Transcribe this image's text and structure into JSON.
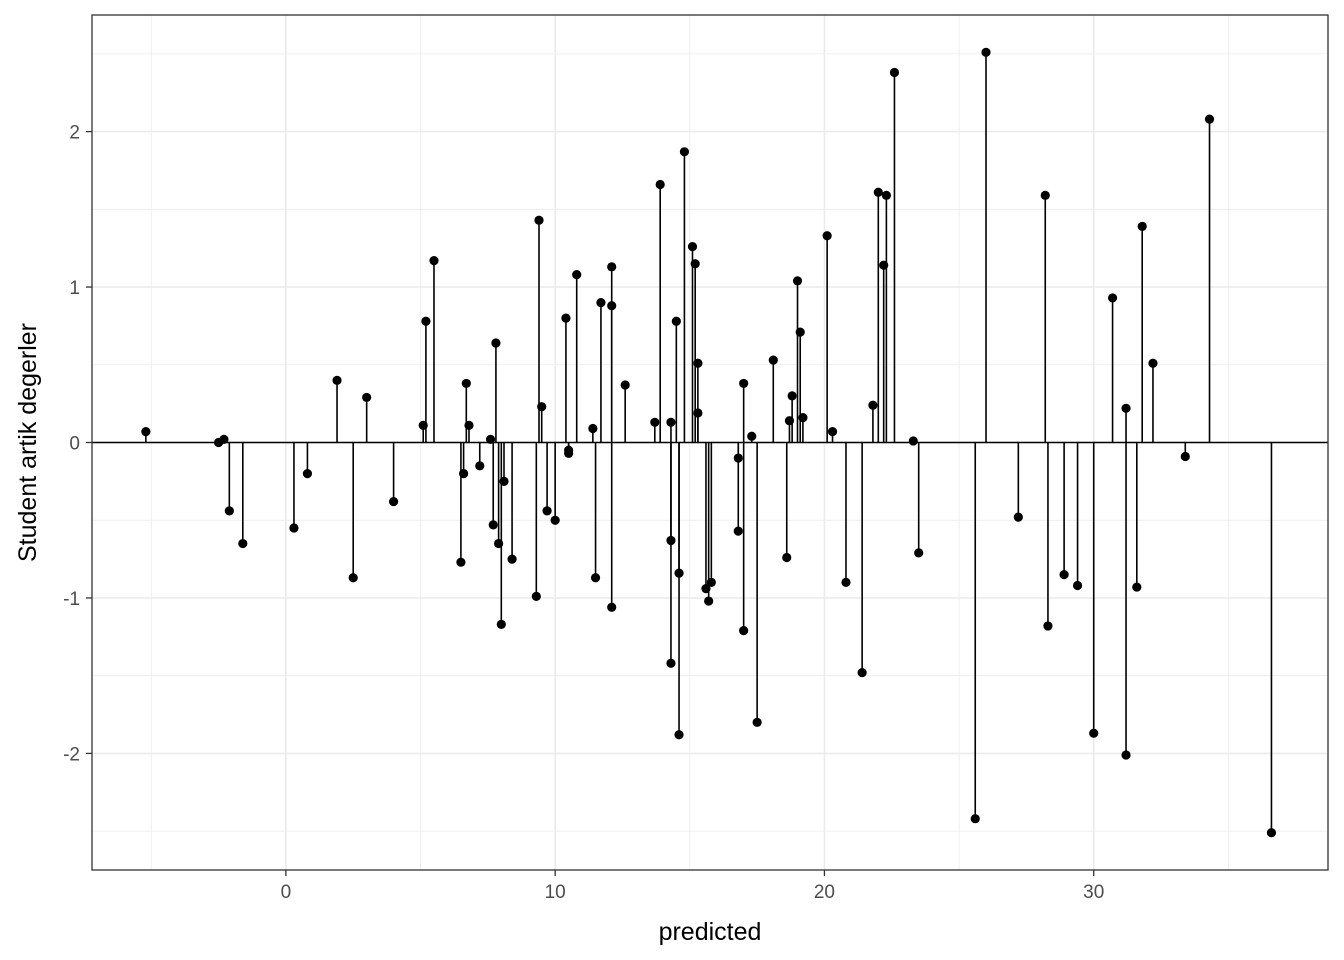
{
  "chart_data": {
    "type": "scatter",
    "subtype": "stem",
    "title": "",
    "xlabel": "predicted",
    "ylabel": "Student artik degerler",
    "xlim": [
      -7.2,
      38.7
    ],
    "ylim": [
      -2.75,
      2.75
    ],
    "x_ticks": [
      0,
      10,
      20,
      30
    ],
    "x_tick_labels": [
      "0",
      "10",
      "20",
      "30"
    ],
    "y_ticks": [
      -2,
      -1,
      0,
      1,
      2
    ],
    "y_tick_labels": [
      "-2",
      "-1",
      "0",
      "1",
      "2"
    ],
    "grid": true,
    "baseline": 0,
    "colors": {
      "points": "#000000",
      "stems": "#000000",
      "grid": "#ebebeb",
      "panel_border": "#333333"
    },
    "points": [
      {
        "x": -5.2,
        "y": 0.07
      },
      {
        "x": -2.5,
        "y": 0.0
      },
      {
        "x": -2.3,
        "y": 0.02
      },
      {
        "x": -2.1,
        "y": -0.44
      },
      {
        "x": -1.6,
        "y": -0.65
      },
      {
        "x": 0.3,
        "y": -0.55
      },
      {
        "x": 0.8,
        "y": -0.2
      },
      {
        "x": 1.9,
        "y": 0.4
      },
      {
        "x": 2.5,
        "y": -0.87
      },
      {
        "x": 3.0,
        "y": 0.29
      },
      {
        "x": 4.0,
        "y": -0.38
      },
      {
        "x": 5.1,
        "y": 0.11
      },
      {
        "x": 5.2,
        "y": 0.78
      },
      {
        "x": 5.5,
        "y": 1.17
      },
      {
        "x": 6.5,
        "y": -0.77
      },
      {
        "x": 6.6,
        "y": -0.2
      },
      {
        "x": 6.7,
        "y": 0.38
      },
      {
        "x": 6.8,
        "y": 0.11
      },
      {
        "x": 7.2,
        "y": -0.15
      },
      {
        "x": 7.6,
        "y": 0.02
      },
      {
        "x": 7.7,
        "y": -0.53
      },
      {
        "x": 7.8,
        "y": 0.64
      },
      {
        "x": 7.9,
        "y": -0.65
      },
      {
        "x": 8.0,
        "y": -1.17
      },
      {
        "x": 8.1,
        "y": -0.25
      },
      {
        "x": 8.4,
        "y": -0.75
      },
      {
        "x": 9.3,
        "y": -0.99
      },
      {
        "x": 9.4,
        "y": 1.43
      },
      {
        "x": 9.5,
        "y": 0.23
      },
      {
        "x": 9.7,
        "y": -0.44
      },
      {
        "x": 10.0,
        "y": -0.5
      },
      {
        "x": 10.4,
        "y": 0.8
      },
      {
        "x": 10.5,
        "y": -0.05
      },
      {
        "x": 10.5,
        "y": -0.07
      },
      {
        "x": 10.8,
        "y": 1.08
      },
      {
        "x": 11.4,
        "y": 0.09
      },
      {
        "x": 11.5,
        "y": -0.87
      },
      {
        "x": 11.7,
        "y": 0.9
      },
      {
        "x": 12.1,
        "y": 1.13
      },
      {
        "x": 12.1,
        "y": 0.88
      },
      {
        "x": 12.1,
        "y": -1.06
      },
      {
        "x": 12.6,
        "y": 0.37
      },
      {
        "x": 13.7,
        "y": 0.13
      },
      {
        "x": 13.9,
        "y": 1.66
      },
      {
        "x": 14.3,
        "y": 0.13
      },
      {
        "x": 14.3,
        "y": -0.63
      },
      {
        "x": 14.3,
        "y": -1.42
      },
      {
        "x": 14.5,
        "y": 0.78
      },
      {
        "x": 14.6,
        "y": -0.84
      },
      {
        "x": 14.6,
        "y": -1.88
      },
      {
        "x": 14.8,
        "y": 1.87
      },
      {
        "x": 15.1,
        "y": 1.26
      },
      {
        "x": 15.2,
        "y": 1.15
      },
      {
        "x": 15.3,
        "y": 0.51
      },
      {
        "x": 15.3,
        "y": 0.19
      },
      {
        "x": 15.6,
        "y": -0.94
      },
      {
        "x": 15.7,
        "y": -1.02
      },
      {
        "x": 15.8,
        "y": -0.9
      },
      {
        "x": 16.8,
        "y": -0.1
      },
      {
        "x": 16.8,
        "y": -0.57
      },
      {
        "x": 17.0,
        "y": 0.38
      },
      {
        "x": 17.0,
        "y": -1.21
      },
      {
        "x": 17.3,
        "y": 0.04
      },
      {
        "x": 17.5,
        "y": -1.8
      },
      {
        "x": 18.1,
        "y": 0.53
      },
      {
        "x": 18.6,
        "y": -0.74
      },
      {
        "x": 18.7,
        "y": 0.14
      },
      {
        "x": 18.8,
        "y": 0.3
      },
      {
        "x": 19.0,
        "y": 1.04
      },
      {
        "x": 19.1,
        "y": 0.71
      },
      {
        "x": 19.2,
        "y": 0.16
      },
      {
        "x": 20.1,
        "y": 1.33
      },
      {
        "x": 20.3,
        "y": 0.07
      },
      {
        "x": 20.8,
        "y": -0.9
      },
      {
        "x": 21.4,
        "y": -1.48
      },
      {
        "x": 21.8,
        "y": 0.24
      },
      {
        "x": 22.0,
        "y": 1.61
      },
      {
        "x": 22.2,
        "y": 1.14
      },
      {
        "x": 22.3,
        "y": 1.59
      },
      {
        "x": 22.6,
        "y": 2.38
      },
      {
        "x": 23.3,
        "y": 0.01
      },
      {
        "x": 23.5,
        "y": -0.71
      },
      {
        "x": 25.6,
        "y": -2.42
      },
      {
        "x": 26.0,
        "y": 2.51
      },
      {
        "x": 27.2,
        "y": -0.48
      },
      {
        "x": 28.2,
        "y": 1.59
      },
      {
        "x": 28.3,
        "y": -1.18
      },
      {
        "x": 28.9,
        "y": -0.85
      },
      {
        "x": 29.4,
        "y": -0.92
      },
      {
        "x": 30.0,
        "y": -1.87
      },
      {
        "x": 30.7,
        "y": 0.93
      },
      {
        "x": 31.2,
        "y": 0.22
      },
      {
        "x": 31.2,
        "y": -2.01
      },
      {
        "x": 31.6,
        "y": -0.93
      },
      {
        "x": 31.8,
        "y": 1.39
      },
      {
        "x": 32.2,
        "y": 0.51
      },
      {
        "x": 33.4,
        "y": -0.09
      },
      {
        "x": 34.3,
        "y": 2.08
      },
      {
        "x": 36.6,
        "y": -2.51
      }
    ]
  }
}
